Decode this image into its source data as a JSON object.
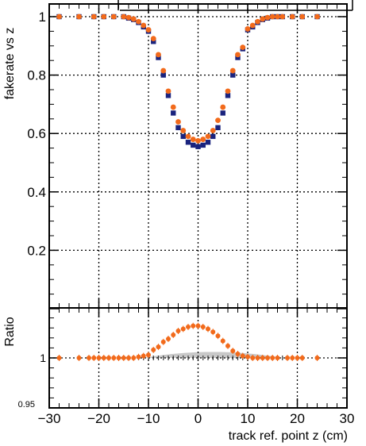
{
  "chart_data": [
    {
      "panel": "main",
      "type": "scatter",
      "ylabel": "fakerate vs z",
      "xlim": [
        -30,
        30
      ],
      "ylim": [
        0,
        1.05
      ],
      "xticks": [
        -30,
        -20,
        -10,
        0,
        10,
        20,
        30
      ],
      "yticks": [
        0,
        0.2,
        0.4,
        0.6,
        0.8,
        1
      ],
      "ytick_labels": [
        "0",
        "0.2",
        "0.4",
        "0.6",
        "0.8",
        "1"
      ],
      "grid": true,
      "series": [
        {
          "color": "#1a237e",
          "marker": "square",
          "x": [
            -28,
            -24,
            -21,
            -19,
            -17,
            -15,
            -14,
            -13,
            -12,
            -11,
            -10,
            -9,
            -8,
            -7,
            -6,
            -5,
            -4,
            -3,
            -2,
            -1,
            0,
            1,
            2,
            3,
            4,
            5,
            6,
            7,
            8,
            9,
            10,
            11,
            12,
            13,
            14,
            15,
            16,
            17,
            19,
            21,
            24
          ],
          "y": [
            1,
            1,
            1,
            1,
            1,
            1,
            0.995,
            0.99,
            0.98,
            0.965,
            0.95,
            0.915,
            0.86,
            0.8,
            0.73,
            0.67,
            0.62,
            0.59,
            0.57,
            0.56,
            0.555,
            0.56,
            0.57,
            0.59,
            0.62,
            0.67,
            0.73,
            0.8,
            0.86,
            0.89,
            0.955,
            0.965,
            0.98,
            0.99,
            0.995,
            1,
            1,
            1,
            1,
            1,
            1
          ]
        },
        {
          "color": "#f26a1b",
          "marker": "circle",
          "x": [
            -28,
            -24,
            -21,
            -19,
            -17,
            -15,
            -14,
            -13,
            -12,
            -11,
            -10,
            -9,
            -8,
            -7,
            -6,
            -5,
            -4,
            -3,
            -2,
            -1,
            0,
            1,
            2,
            3,
            4,
            5,
            6,
            7,
            8,
            9,
            10,
            11,
            12,
            13,
            14,
            15,
            16,
            17,
            19,
            21,
            24
          ],
          "y": [
            1,
            1,
            1,
            1,
            1,
            1,
            0.997,
            0.992,
            0.983,
            0.97,
            0.955,
            0.925,
            0.87,
            0.815,
            0.745,
            0.69,
            0.64,
            0.61,
            0.59,
            0.58,
            0.575,
            0.58,
            0.59,
            0.61,
            0.645,
            0.69,
            0.745,
            0.815,
            0.87,
            0.895,
            0.958,
            0.97,
            0.983,
            0.992,
            0.997,
            1,
            1,
            1,
            1,
            1,
            1
          ]
        }
      ]
    },
    {
      "panel": "ratio",
      "type": "scatter",
      "xlabel": "track ref. point z (cm)",
      "ylabel": "Ratio",
      "xlim": [
        -30,
        30
      ],
      "ylim": [
        0.95,
        1.05
      ],
      "xticks": [
        -30,
        -20,
        -10,
        0,
        10,
        20,
        30
      ],
      "xtick_labels": [
        "−30",
        "−20",
        "−10",
        "0",
        "10",
        "20",
        "30"
      ],
      "yticks": [
        1
      ],
      "ytick_labels": [
        "1"
      ],
      "ymin_label": "0.95",
      "grid": true,
      "series": [
        {
          "color": "#f26a1b",
          "marker": "circle",
          "x": [
            -28,
            -24,
            -22,
            -21,
            -20,
            -19,
            -18,
            -17,
            -16,
            -15,
            -14,
            -13,
            -12,
            -11,
            -10,
            -9,
            -8,
            -7,
            -6,
            -5,
            -4,
            -3,
            -2,
            -1,
            0,
            1,
            2,
            3,
            4,
            5,
            6,
            7,
            8,
            9,
            10,
            11,
            12,
            13,
            14,
            15,
            16,
            18,
            19,
            20,
            21,
            24
          ],
          "y": [
            1,
            1,
            1,
            1,
            1,
            1,
            1,
            1,
            1,
            1,
            1,
            1,
            1.001,
            1.002,
            1.003,
            1.008,
            1.011,
            1.016,
            1.019,
            1.023,
            1.027,
            1.029,
            1.031,
            1.032,
            1.032,
            1.031,
            1.029,
            1.026,
            1.022,
            1.017,
            1.012,
            1.007,
            1.004,
            1.002,
            1.001,
            1,
            1,
            1,
            1,
            1,
            1,
            1,
            1,
            1,
            1,
            1
          ]
        }
      ],
      "reference_band": {
        "color": "#c8c8c8",
        "x": [
          -11,
          17
        ],
        "peak": 1.006
      }
    }
  ]
}
